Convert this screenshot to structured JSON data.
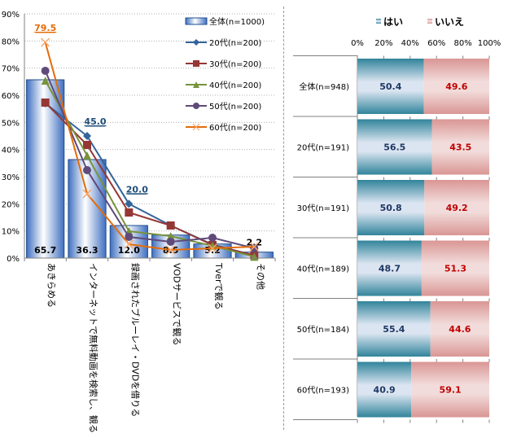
{
  "chart_data": [
    {
      "type": "bar",
      "subtype": "bar-with-lines",
      "title": "",
      "xlabel": "",
      "ylabel": "",
      "ylim": [
        0,
        90
      ],
      "yticks": [
        "0%",
        "10%",
        "20%",
        "30%",
        "40%",
        "50%",
        "60%",
        "70%",
        "80%",
        "90%"
      ],
      "grid": true,
      "legend_position": "top-right",
      "categories": [
        "あきらめる",
        "インターネットで無料動画を検索し、観る",
        "録画されたブルーレイ・DVDを借りる",
        "VODサービスで観る",
        "Tverで観る",
        "その他"
      ],
      "bar_series": {
        "name": "全体(n=1000)",
        "values": [
          65.7,
          36.3,
          12.0,
          8.5,
          5.2,
          2.2
        ],
        "labels": [
          "65.7",
          "36.3",
          "12.0",
          "8.5",
          "5.2",
          "2.2"
        ],
        "color": "#4a78c4"
      },
      "line_series": [
        {
          "name": "20代(n=200)",
          "marker": "diamond",
          "color": "#33649a",
          "values": [
            57.0,
            45.0,
            20.0,
            12.0,
            5.0,
            1.0
          ]
        },
        {
          "name": "30代(n=200)",
          "marker": "square",
          "color": "#953735",
          "values": [
            57.3,
            41.7,
            16.8,
            12.0,
            4.8,
            1.0
          ]
        },
        {
          "name": "40代(n=200)",
          "marker": "triangle",
          "color": "#77933c",
          "values": [
            65.4,
            37.8,
            9.9,
            8.1,
            4.5,
            0.5
          ]
        },
        {
          "name": "50代(n=200)",
          "marker": "circle",
          "color": "#604a7b",
          "values": [
            69.0,
            32.4,
            7.8,
            6.0,
            7.5,
            3.6
          ]
        },
        {
          "name": "60代(n=200)",
          "marker": "x",
          "color": "#e46c0a",
          "values": [
            79.5,
            23.7,
            5.1,
            3.0,
            3.6,
            4.2
          ]
        }
      ],
      "annotations": [
        {
          "text": "79.5",
          "series": "60代(n=200)",
          "category": "あきらめる",
          "color": "#e46c0a"
        },
        {
          "text": "45.0",
          "series": "20代(n=200)",
          "category": "インターネットで無料動画を検索し、観る",
          "color": "#1f4e79"
        },
        {
          "text": "20.0",
          "series": "20代(n=200)",
          "category": "録画されたブルーレイ・DVDを借りる",
          "color": "#1f4e79"
        }
      ]
    },
    {
      "type": "bar",
      "subtype": "stacked-horizontal-100",
      "title": "",
      "xlim": [
        0,
        100
      ],
      "xticks": [
        "0%",
        "20%",
        "40%",
        "60%",
        "80%",
        "100%"
      ],
      "legend_position": "top",
      "categories": [
        "全体(n=948)",
        "20代(n=191)",
        "30代(n=191)",
        "40代(n=189)",
        "50代(n=184)",
        "60代(n=193)"
      ],
      "series": [
        {
          "name": "はい",
          "color": "#31849b",
          "label_color": "#1f3864",
          "values": [
            50.4,
            56.5,
            50.8,
            48.7,
            55.4,
            40.9
          ]
        },
        {
          "name": "いいえ",
          "color": "#d99694",
          "label_color": "#c00000",
          "values": [
            49.6,
            43.5,
            49.2,
            51.3,
            44.6,
            59.1
          ]
        }
      ]
    }
  ]
}
